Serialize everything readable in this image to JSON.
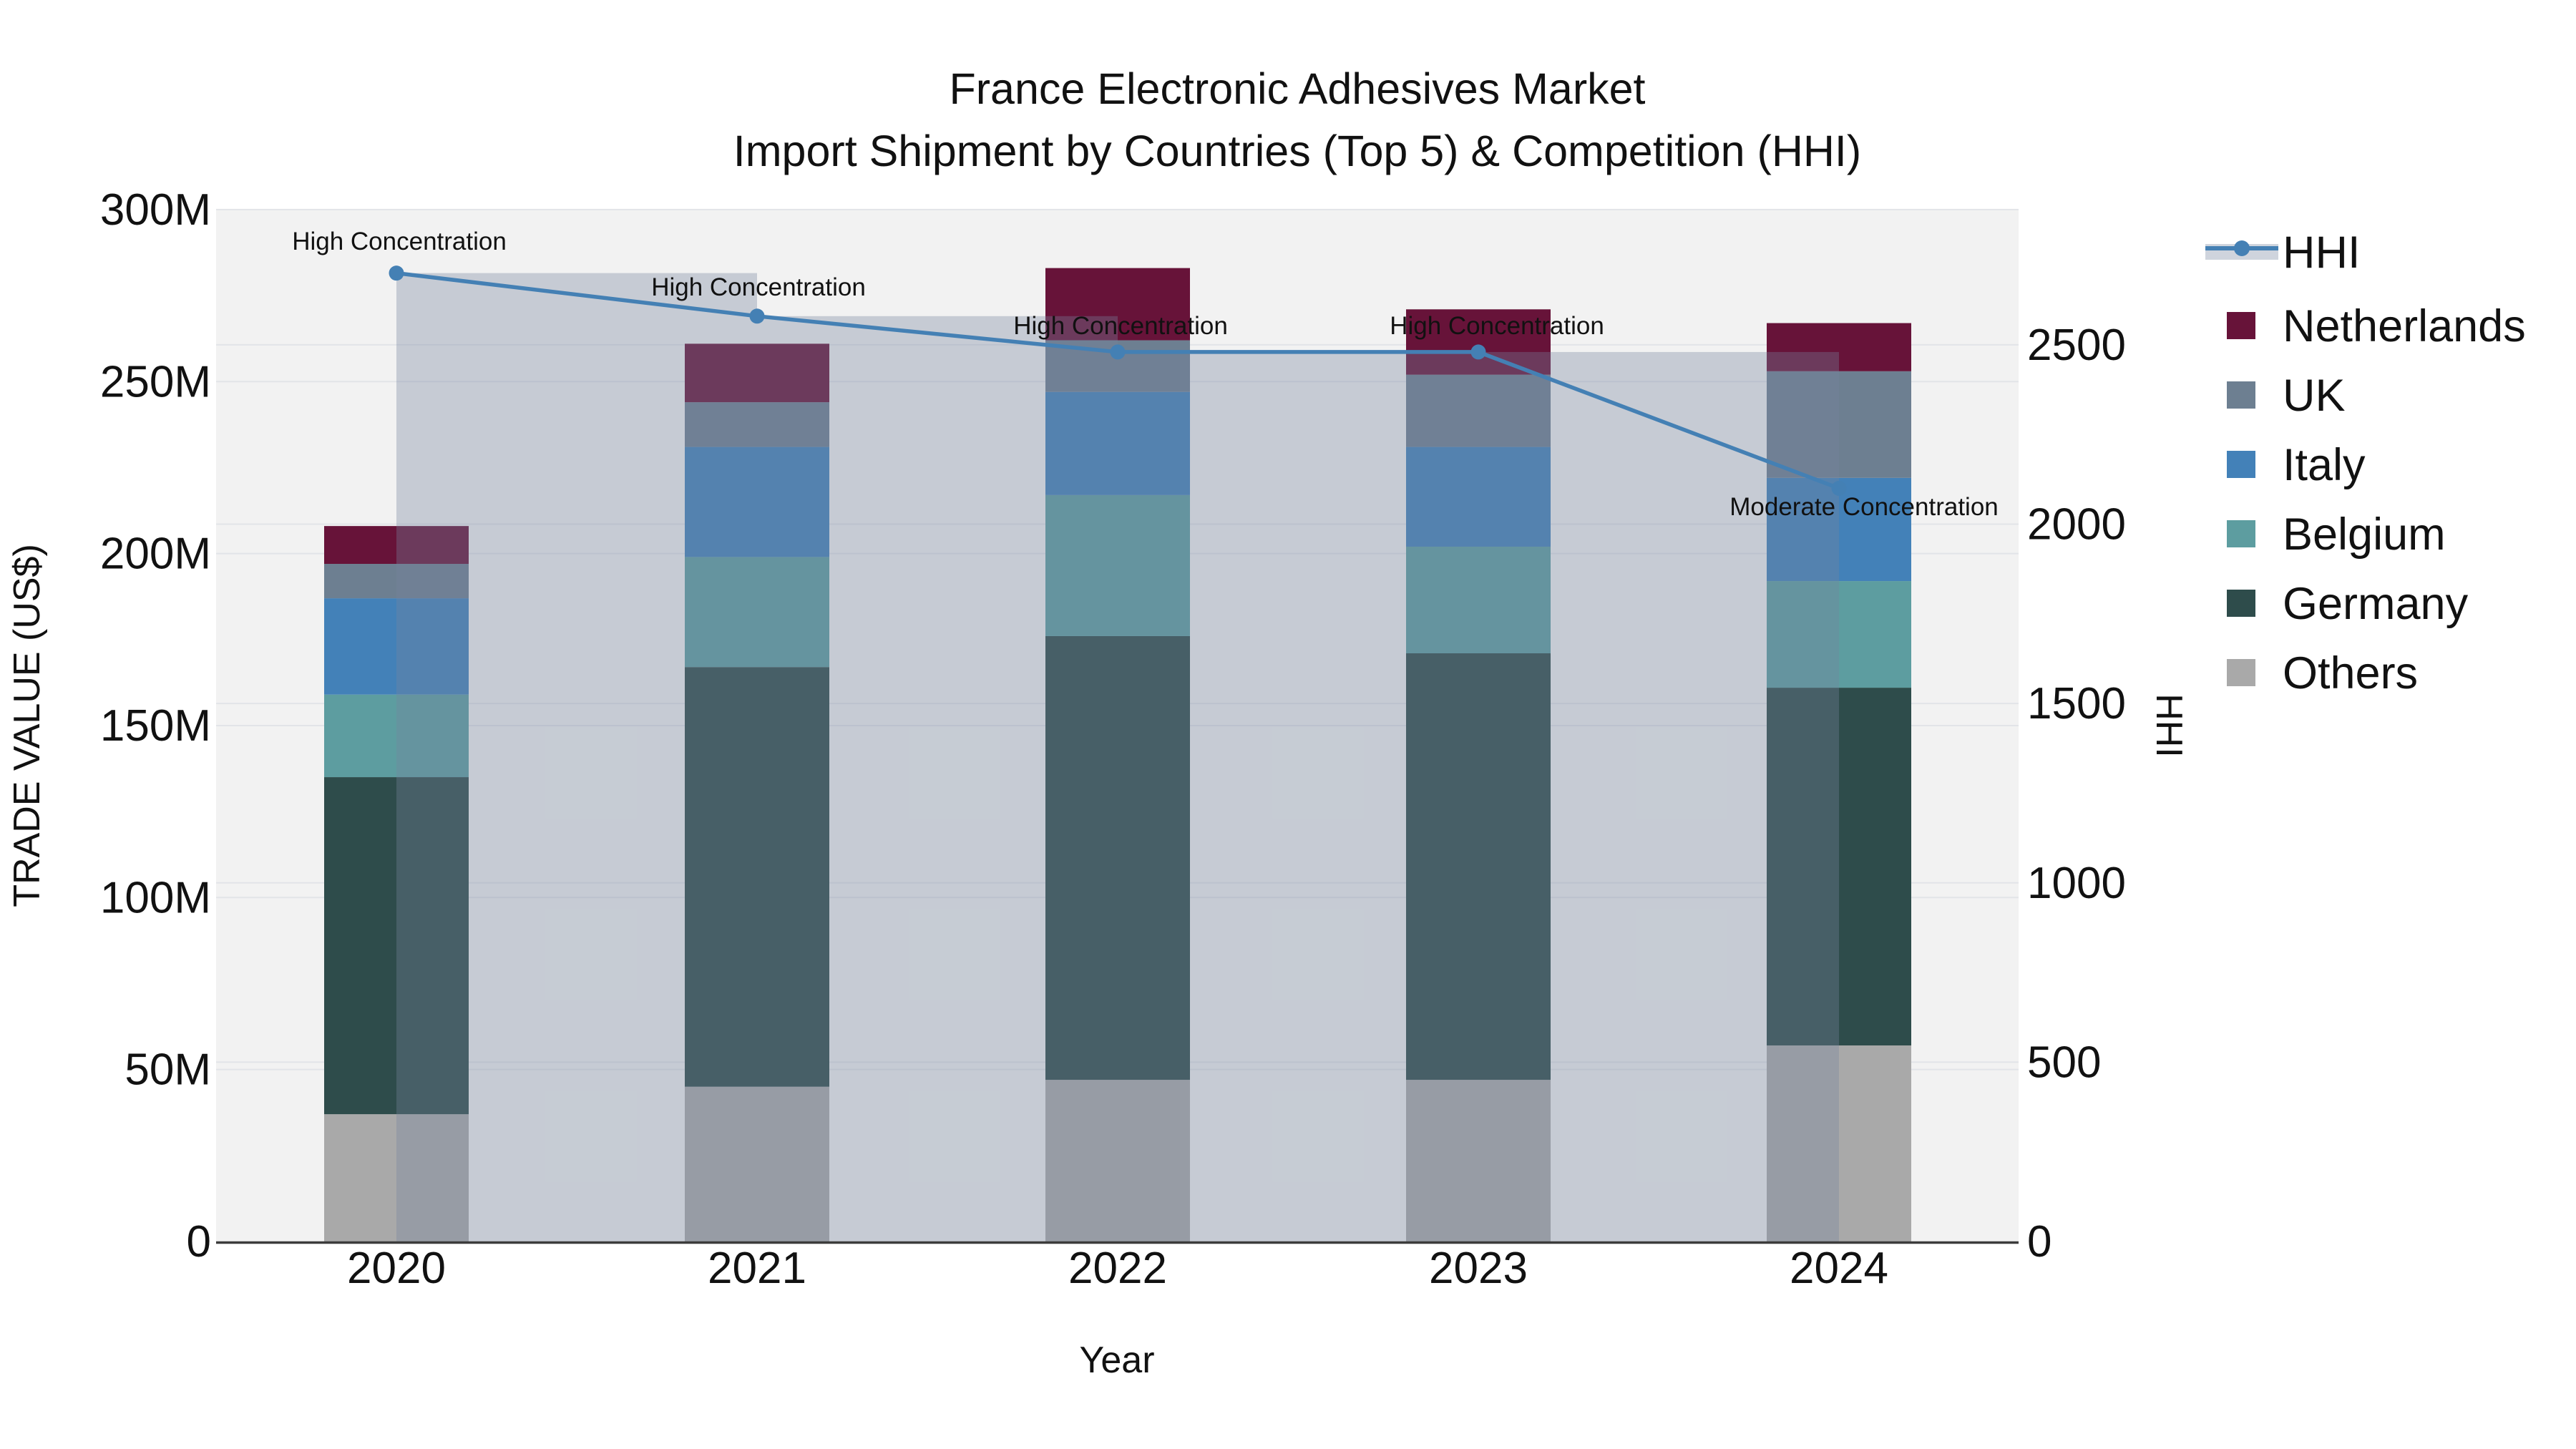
{
  "chart_data": {
    "type": "bar+line",
    "title_line1": "France Electronic Adhesives Market",
    "title_line2": "Import Shipment by Countries (Top 5) & Competition (HHI)",
    "xlabel": "Year",
    "ylabel_left": "TRADE VALUE (US$)",
    "ylabel_right": "HHI",
    "categories": [
      "2020",
      "2021",
      "2022",
      "2023",
      "2024"
    ],
    "value_unit": "M",
    "series": [
      {
        "name": "Others",
        "color": "#a9a9a9",
        "values": [
          37,
          45,
          47,
          47,
          57
        ]
      },
      {
        "name": "Germany",
        "color": "#2e4c4b",
        "values": [
          98,
          122,
          129,
          124,
          104
        ]
      },
      {
        "name": "Belgium",
        "color": "#5d9da0",
        "values": [
          24,
          32,
          41,
          31,
          31
        ]
      },
      {
        "name": "Italy",
        "color": "#4381b8",
        "values": [
          28,
          32,
          30,
          29,
          30
        ]
      },
      {
        "name": "UK",
        "color": "#6d7f91",
        "values": [
          10,
          13,
          15,
          21,
          31
        ]
      },
      {
        "name": "Netherlands",
        "color": "#671339",
        "values": [
          11,
          17,
          21,
          19,
          14
        ]
      }
    ],
    "hhi": {
      "name": "HHI",
      "values": [
        2700,
        2580,
        2480,
        2480,
        2100
      ],
      "line_color": "#4480b4",
      "band_color": "rgba(117,133,157,0.35)"
    },
    "annotations": [
      {
        "year": "2020",
        "label": "High Concentration"
      },
      {
        "year": "2021",
        "label": "High Concentration"
      },
      {
        "year": "2022",
        "label": "High Concentration"
      },
      {
        "year": "2023",
        "label": "High Concentration"
      },
      {
        "year": "2024",
        "label": "Moderate Concentration"
      }
    ],
    "legend_order": [
      "HHI",
      "Netherlands",
      "UK",
      "Italy",
      "Belgium",
      "Germany",
      "Others"
    ],
    "y_left": {
      "tick_labels": [
        "0",
        "50M",
        "100M",
        "150M",
        "200M",
        "250M",
        "300M"
      ],
      "tick_values": [
        0,
        50,
        100,
        150,
        200,
        250,
        300
      ],
      "max": 300
    },
    "y_right": {
      "tick_labels": [
        "0",
        "500",
        "1000",
        "1500",
        "2000",
        "2500"
      ],
      "tick_values": [
        0,
        500,
        1000,
        1500,
        2000,
        2500
      ]
    },
    "colors": {
      "plot_bg": "#f2f2f2",
      "grid": "#e2e4e8",
      "axis_line": "#3c3c3c",
      "text": "#111111"
    }
  }
}
